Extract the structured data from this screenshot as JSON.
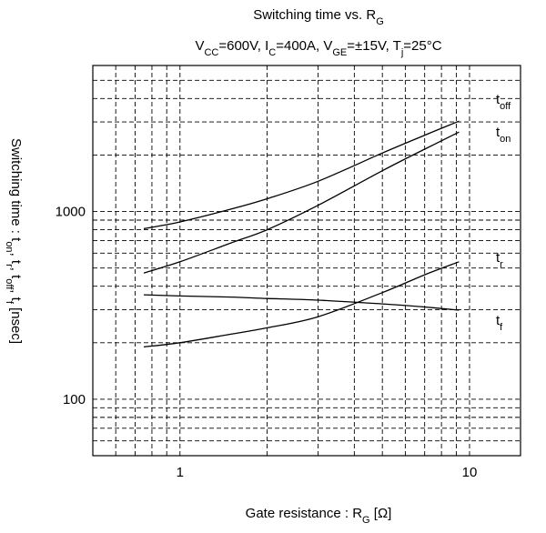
{
  "chart_data": {
    "type": "line",
    "title": {
      "main": "Switching time vs. R",
      "main_sub": "G"
    },
    "subtitle": [
      {
        "t": "V"
      },
      {
        "t": "CC",
        "sub": true
      },
      {
        "t": "=600V, I"
      },
      {
        "t": "C",
        "sub": true
      },
      {
        "t": "=400A, V"
      },
      {
        "t": "GE",
        "sub": true
      },
      {
        "t": "=±15V, T"
      },
      {
        "t": "j",
        "sub": true
      },
      {
        "t": "=25°C"
      }
    ],
    "xlabel": [
      {
        "t": "Gate resistance : R"
      },
      {
        "t": "G",
        "sub": true
      },
      {
        "t": " [Ω]"
      }
    ],
    "ylabel": [
      {
        "t": "Switching time : t"
      },
      {
        "t": "on",
        "sub": true
      },
      {
        "t": ", t"
      },
      {
        "t": "r",
        "sub": true
      },
      {
        "t": ", t"
      },
      {
        "t": "off",
        "sub": true
      },
      {
        "t": ", t"
      },
      {
        "t": "f",
        "sub": true
      },
      {
        "t": " [nsec]"
      }
    ],
    "x_scale": "log",
    "y_scale": "log",
    "xlim": [
      0.5,
      15
    ],
    "ylim": [
      50,
      6000
    ],
    "x_ticks": [
      {
        "value": 1,
        "label": "1"
      },
      {
        "value": 10,
        "label": "10"
      }
    ],
    "y_ticks": [
      {
        "value": 100,
        "label": "100"
      },
      {
        "value": 1000,
        "label": "1000"
      }
    ],
    "grid": true,
    "series": [
      {
        "name": "off",
        "x": [
          0.75,
          1,
          1.5,
          2,
          3,
          5,
          7,
          9.2
        ],
        "y": [
          810,
          880,
          1030,
          1170,
          1450,
          2050,
          2550,
          3030
        ]
      },
      {
        "name": "on",
        "x": [
          0.75,
          1,
          1.5,
          2,
          3,
          5,
          7,
          9.2
        ],
        "y": [
          470,
          540,
          680,
          800,
          1080,
          1650,
          2150,
          2650
        ]
      },
      {
        "name": "r",
        "x": [
          0.75,
          1,
          1.5,
          2,
          3,
          5,
          7,
          9.2
        ],
        "y": [
          190,
          200,
          222,
          240,
          275,
          370,
          460,
          540
        ]
      },
      {
        "name": "f",
        "x": [
          0.75,
          1,
          1.5,
          2,
          3,
          5,
          7,
          9.2
        ],
        "y": [
          360,
          355,
          350,
          344,
          337,
          322,
          310,
          298
        ]
      }
    ]
  }
}
